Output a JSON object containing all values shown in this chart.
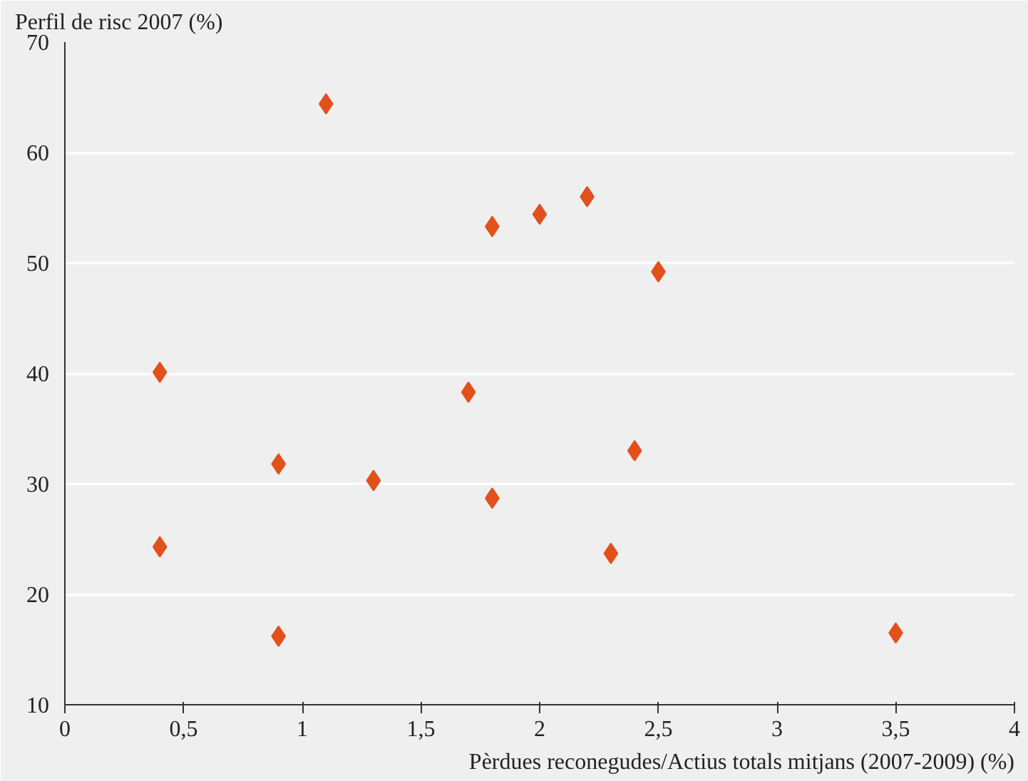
{
  "chart_data": {
    "type": "scatter",
    "ylabel": "Perfil de risc 2007 (%)",
    "xlabel": "Pèrdues reconegudes/Actius totals mitjans (2007-2009) (%)",
    "x": [
      0.4,
      0.4,
      0.9,
      0.9,
      1.1,
      1.3,
      1.7,
      1.8,
      1.8,
      2.0,
      2.2,
      2.3,
      2.4,
      2.5,
      3.5
    ],
    "series": [
      {
        "color": "#e2501c",
        "values": [
          40.1,
          24.3,
          31.8,
          16.2,
          64.4,
          30.3,
          38.3,
          53.3,
          28.7,
          54.4,
          56.0,
          23.7,
          33.0,
          49.2,
          16.5
        ]
      }
    ],
    "xlim": [
      0,
      4
    ],
    "ylim": [
      10,
      70
    ],
    "xticks": [
      0,
      {
        "value": 0.5,
        "label": "0,5"
      },
      1,
      {
        "value": 1.5,
        "label": "1,5"
      },
      2,
      {
        "value": 2.5,
        "label": "2,5"
      },
      3,
      {
        "value": 3.5,
        "label": "3,5"
      },
      4
    ],
    "yticks": [
      10,
      20,
      30,
      40,
      50,
      60,
      70
    ],
    "grid": "y",
    "marker": "diamond"
  }
}
